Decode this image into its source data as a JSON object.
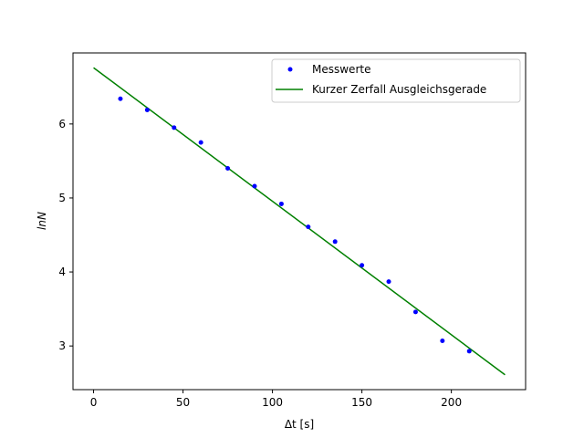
{
  "chart_data": {
    "type": "scatter",
    "xlabel": "Δt [s]",
    "ylabel": "lnN",
    "xlim": [
      -11.5,
      241.5
    ],
    "ylim": [
      2.41,
      6.96
    ],
    "xticks": [
      0,
      50,
      100,
      150,
      200
    ],
    "yticks": [
      3,
      4,
      5,
      6
    ],
    "grid": false,
    "legend_position": "top-right",
    "series": [
      {
        "name": "Messwerte",
        "kind": "points",
        "color": "#0000ff",
        "x": [
          15,
          30,
          45,
          60,
          75,
          90,
          105,
          120,
          135,
          150,
          165,
          180,
          195,
          210
        ],
        "y": [
          6.34,
          6.19,
          5.95,
          5.75,
          5.4,
          5.16,
          4.92,
          4.61,
          4.41,
          4.09,
          3.87,
          3.46,
          3.07,
          2.93
        ]
      },
      {
        "name": "Kurzer Zerfall Ausgleichsgerade",
        "kind": "line",
        "color": "#008000",
        "x": [
          0,
          230
        ],
        "y": [
          6.76,
          2.61
        ]
      }
    ]
  }
}
